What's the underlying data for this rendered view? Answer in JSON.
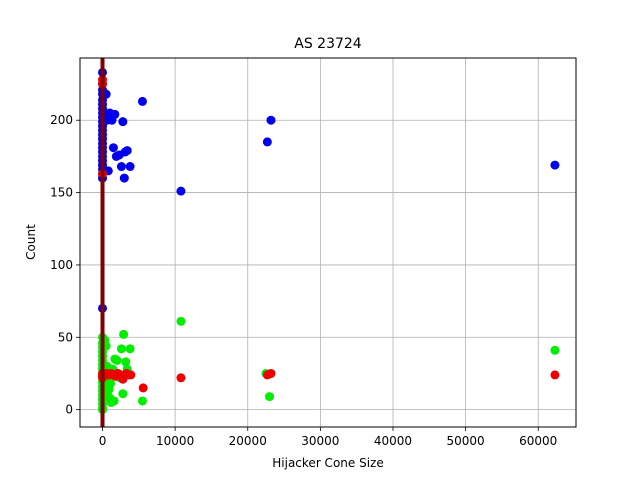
{
  "chart_data": {
    "type": "scatter",
    "title": "AS 23724",
    "xlabel": "Hijacker Cone Size",
    "ylabel": "Count",
    "xlim": [
      -3100,
      65200
    ],
    "ylim": [
      -12,
      243
    ],
    "xticks": [
      0,
      10000,
      20000,
      30000,
      40000,
      50000,
      60000
    ],
    "xtick_labels": [
      "0",
      "10000",
      "20000",
      "30000",
      "40000",
      "50000",
      "60000"
    ],
    "yticks": [
      0,
      50,
      100,
      150,
      200
    ],
    "ytick_labels": [
      "0",
      "50",
      "100",
      "150",
      "200"
    ],
    "grid": true,
    "colors": {
      "blue": "#0000ee",
      "green": "#00ee00",
      "red": "#ee0000",
      "vline": "#800000"
    },
    "vertical_line": {
      "x": 0
    },
    "series": [
      {
        "color": "#0000ee",
        "points": [
          [
            0,
            233
          ],
          [
            0,
            225
          ],
          [
            0,
            221
          ],
          [
            0,
            218
          ],
          [
            0,
            214
          ],
          [
            0,
            211
          ],
          [
            0,
            208
          ],
          [
            0,
            205
          ],
          [
            0,
            202
          ],
          [
            0,
            199
          ],
          [
            0,
            196
          ],
          [
            0,
            193
          ],
          [
            0,
            190
          ],
          [
            0,
            187
          ],
          [
            0,
            184
          ],
          [
            0,
            181
          ],
          [
            0,
            178
          ],
          [
            0,
            175
          ],
          [
            0,
            172
          ],
          [
            0,
            169
          ],
          [
            0,
            166
          ],
          [
            0,
            163
          ],
          [
            0,
            160
          ],
          [
            0,
            70
          ],
          [
            500,
            218
          ],
          [
            600,
            200
          ],
          [
            800,
            165
          ],
          [
            1000,
            205
          ],
          [
            1300,
            200
          ],
          [
            1500,
            181
          ],
          [
            1700,
            204
          ],
          [
            1900,
            175
          ],
          [
            2300,
            176
          ],
          [
            2600,
            168
          ],
          [
            2800,
            199
          ],
          [
            3000,
            160
          ],
          [
            3100,
            178
          ],
          [
            3400,
            179
          ],
          [
            3800,
            168
          ],
          [
            5500,
            213
          ],
          [
            10800,
            151
          ],
          [
            22700,
            185
          ],
          [
            23200,
            200
          ],
          [
            62300,
            169
          ]
        ]
      },
      {
        "color": "#00ee00",
        "points": [
          [
            0,
            50
          ],
          [
            0,
            46
          ],
          [
            0,
            43
          ],
          [
            0,
            40
          ],
          [
            0,
            37
          ],
          [
            0,
            34
          ],
          [
            0,
            31
          ],
          [
            0,
            28
          ],
          [
            0,
            25
          ],
          [
            0,
            22
          ],
          [
            0,
            19
          ],
          [
            0,
            16
          ],
          [
            0,
            13
          ],
          [
            0,
            10
          ],
          [
            0,
            7
          ],
          [
            0,
            4
          ],
          [
            0,
            1
          ],
          [
            0,
            0
          ],
          [
            300,
            48
          ],
          [
            500,
            44
          ],
          [
            600,
            30
          ],
          [
            800,
            20
          ],
          [
            900,
            14
          ],
          [
            1000,
            8
          ],
          [
            1200,
            5
          ],
          [
            1400,
            28
          ],
          [
            1700,
            35
          ],
          [
            2000,
            34
          ],
          [
            2200,
            25
          ],
          [
            2600,
            42
          ],
          [
            2800,
            11
          ],
          [
            2900,
            52
          ],
          [
            3200,
            33
          ],
          [
            3400,
            28
          ],
          [
            3800,
            42
          ],
          [
            5500,
            6
          ],
          [
            10800,
            61
          ],
          [
            22500,
            25
          ],
          [
            23000,
            9
          ],
          [
            62300,
            41
          ],
          [
            700,
            10
          ],
          [
            1600,
            6
          ],
          [
            2400,
            22
          ],
          [
            1100,
            18
          ]
        ]
      },
      {
        "color": "#ee0000",
        "points": [
          [
            0,
            228
          ],
          [
            0,
            225
          ],
          [
            0,
            163
          ],
          [
            0,
            25
          ],
          [
            0,
            24
          ],
          [
            0,
            23
          ],
          [
            0,
            22
          ],
          [
            600,
            25
          ],
          [
            900,
            24
          ],
          [
            1200,
            25
          ],
          [
            1500,
            24
          ],
          [
            1800,
            23
          ],
          [
            2100,
            25
          ],
          [
            2400,
            24
          ],
          [
            2700,
            23
          ],
          [
            3000,
            24
          ],
          [
            3300,
            25
          ],
          [
            3600,
            24
          ],
          [
            3900,
            24
          ],
          [
            2800,
            21
          ],
          [
            5600,
            15
          ],
          [
            10800,
            22
          ],
          [
            22700,
            24
          ],
          [
            23200,
            25
          ],
          [
            62300,
            24
          ]
        ]
      }
    ]
  }
}
